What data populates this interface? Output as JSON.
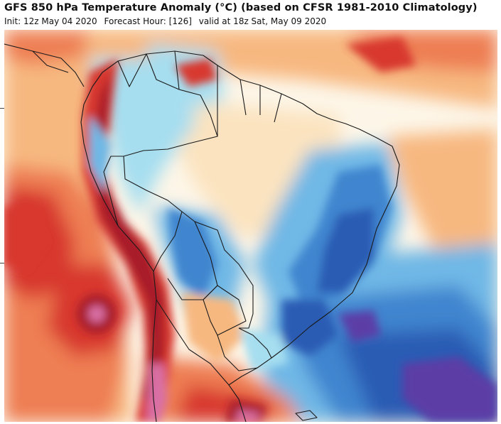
{
  "header": {
    "title": "GFS 850 hPa Temperature Anomaly (°C) (based on CFSR 1981-2010 Climatology)",
    "init": "Init: 12z May 04 2020",
    "forecast_hour": "Forecast Hour: [126]",
    "valid": "valid at 18z Sat, May 09 2020"
  },
  "map": {
    "region": "South America",
    "field": "850 hPa temperature anomaly",
    "colors": {
      "neutral": "#fdf6e8",
      "warm_1": "#fbe3bf",
      "warm_2": "#f7b880",
      "warm_3": "#ee7e52",
      "warm_4": "#d8382f",
      "warm_5": "#a81c2c",
      "warm_6": "#d96fa5",
      "cool_1": "#d9f1f7",
      "cool_2": "#a6def0",
      "cool_3": "#6fb8e6",
      "cool_4": "#3f85cf",
      "cool_5": "#2a5bb4",
      "cool_6": "#5b3ea6",
      "border": "#1a1a1a"
    }
  }
}
